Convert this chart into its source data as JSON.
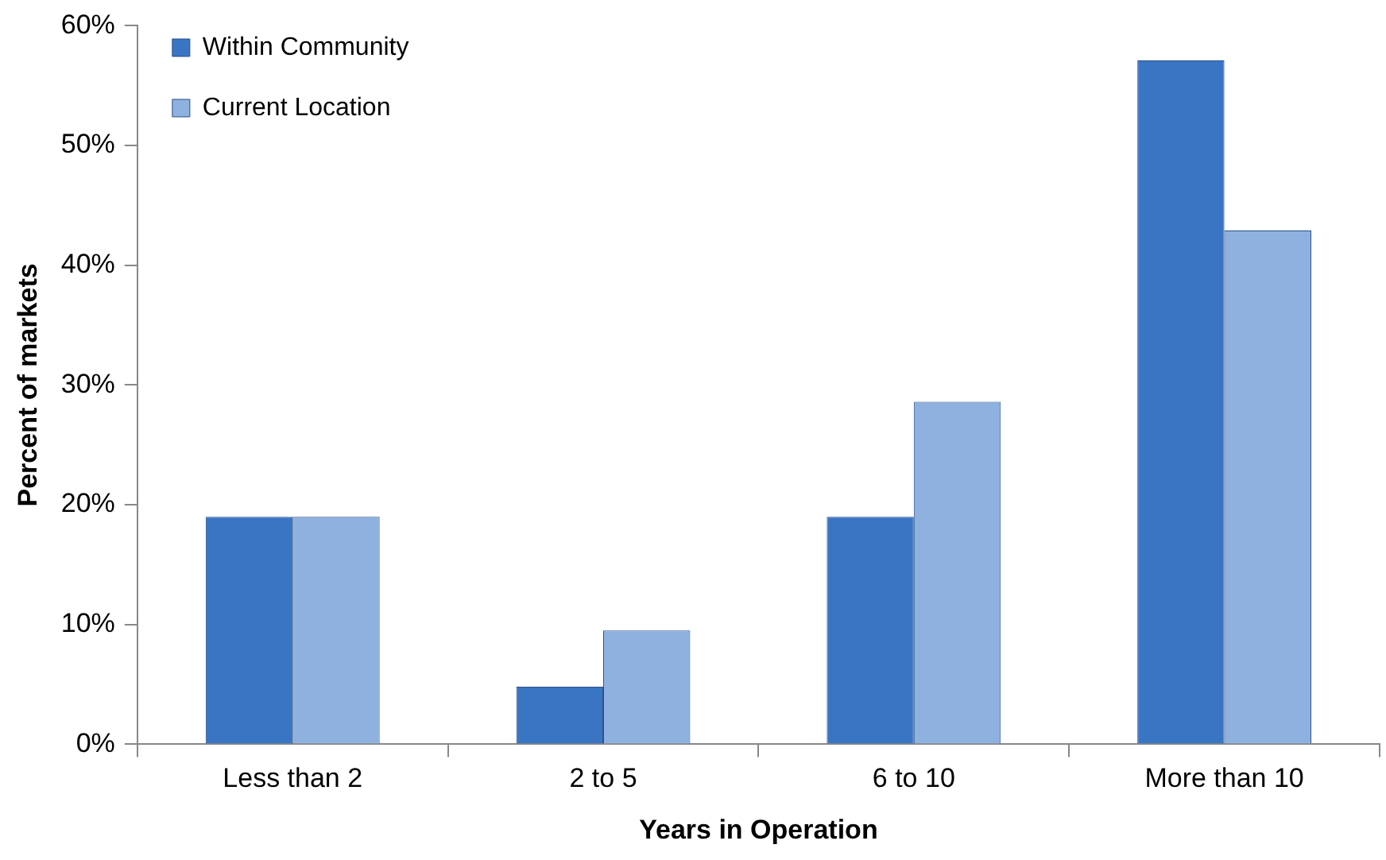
{
  "chart_data": {
    "type": "bar",
    "xlabel": "Years in Operation",
    "ylabel": "Percent of markets",
    "categories": [
      "Less than 2",
      "2 to 5",
      "6 to 10",
      "More than 10"
    ],
    "series": [
      {
        "name": "Within Community",
        "color": "#3a75c4",
        "values": [
          19.0,
          4.8,
          19.0,
          57.1
        ]
      },
      {
        "name": "Current Location",
        "color": "#8eb1e0",
        "values": [
          19.0,
          9.5,
          28.6,
          42.9
        ]
      }
    ],
    "ylim": [
      0,
      60
    ],
    "yticks": [
      {
        "value": 0,
        "label": "0%"
      },
      {
        "value": 10,
        "label": "10%"
      },
      {
        "value": 20,
        "label": "20%"
      },
      {
        "value": 30,
        "label": "30%"
      },
      {
        "value": 40,
        "label": "40%"
      },
      {
        "value": 50,
        "label": "50%"
      },
      {
        "value": 60,
        "label": "60%"
      }
    ],
    "grid": false,
    "legend": "top left"
  }
}
